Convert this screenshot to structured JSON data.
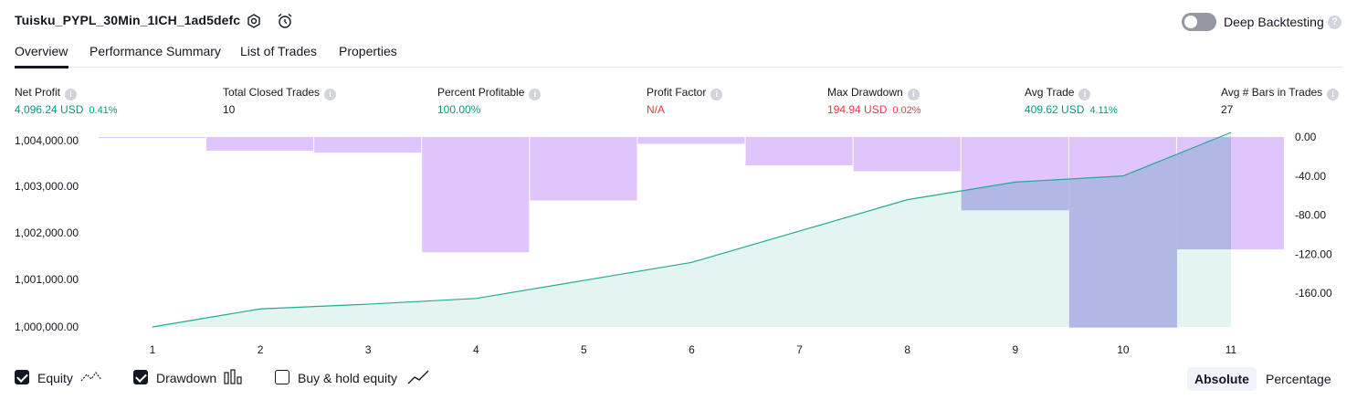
{
  "header": {
    "title": "Tuisku_PYPL_30Min_1ICH_1ad5defc",
    "deep_backtesting_label": "Deep Backtesting",
    "deep_backtesting_on": false
  },
  "tabs": [
    {
      "label": "Overview",
      "active": true
    },
    {
      "label": "Performance Summary",
      "active": false
    },
    {
      "label": "List of Trades",
      "active": false
    },
    {
      "label": "Properties",
      "active": false
    }
  ],
  "metrics": {
    "net_profit": {
      "label": "Net Profit",
      "value": "4,096.24 USD",
      "pct": "0.41%"
    },
    "total_closed_trades": {
      "label": "Total Closed Trades",
      "value": "10"
    },
    "percent_profitable": {
      "label": "Percent Profitable",
      "value": "100.00%"
    },
    "profit_factor": {
      "label": "Profit Factor",
      "value": "N/A"
    },
    "max_drawdown": {
      "label": "Max Drawdown",
      "value": "194.94 USD",
      "pct": "0.02%"
    },
    "avg_trade": {
      "label": "Avg Trade",
      "value": "409.62 USD",
      "pct": "4.11%"
    },
    "avg_bars": {
      "label": "Avg # Bars in Trades",
      "value": "27"
    }
  },
  "colors": {
    "profit": "#089981",
    "loss": "#f23645",
    "equity_line": "#22ab94",
    "equity_fill": "#dff3ee",
    "drawdown_bar": "#e0c4fc",
    "drawdown_overlap": "#b1b8e6"
  },
  "chart_data": {
    "type": "line",
    "x": [
      1,
      2,
      3,
      4,
      5,
      6,
      7,
      8,
      9,
      10,
      11
    ],
    "left_ticks": [
      "1,004,000.00",
      "1,003,000.00",
      "1,002,000.00",
      "1,001,000.00",
      "1,000,000.00"
    ],
    "right_ticks": [
      "0.00",
      "-40.00",
      "-80.00",
      "-120.00",
      "-160.00"
    ],
    "left_ylim": [
      1000000,
      1004000
    ],
    "right_ylim": [
      -194.94,
      0
    ],
    "series": [
      {
        "name": "Equity",
        "axis": "left",
        "values": [
          1000000,
          1000380,
          1000480,
          1000600,
          1000980,
          1001360,
          1002020,
          1002680,
          1003050,
          1003180,
          1004096.24
        ]
      },
      {
        "name": "Drawdown",
        "axis": "right",
        "type": "bar",
        "values": [
          -1,
          -14,
          -16,
          -118,
          -65,
          -7,
          -29,
          -35,
          -75,
          -195,
          -115
        ]
      }
    ]
  },
  "legend": {
    "equity": {
      "label": "Equity",
      "checked": true
    },
    "drawdown": {
      "label": "Drawdown",
      "checked": true
    },
    "buy_hold": {
      "label": "Buy & hold equity",
      "checked": false
    }
  },
  "scale_toggle": {
    "absolute": "Absolute",
    "percentage": "Percentage",
    "selected": "Absolute"
  }
}
